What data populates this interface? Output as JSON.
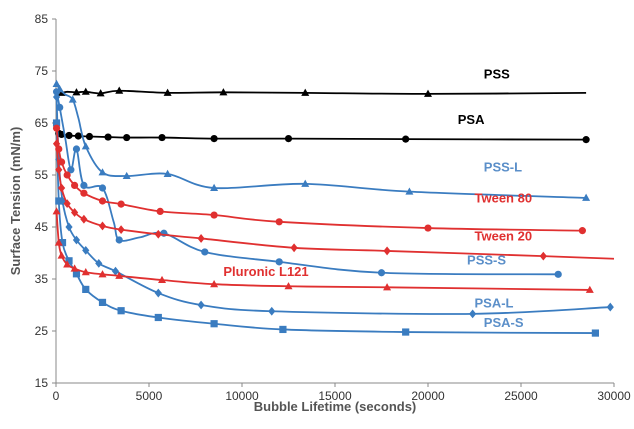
{
  "chart_data": {
    "type": "line",
    "title": "",
    "xlabel": "Bubble Lifetime (seconds)",
    "ylabel": "Surface Tension (mN/m)",
    "xlim": [
      0,
      30000
    ],
    "ylim": [
      15,
      85
    ],
    "xticks": [
      "0",
      "5000",
      "10000",
      "15000",
      "20000",
      "25000",
      "30000"
    ],
    "yticks": [
      "15",
      "25",
      "35",
      "45",
      "55",
      "65",
      "75",
      "85"
    ],
    "grid": false,
    "legend": "none (series labeled directly on the plot)",
    "series": [
      {
        "name": "PSS",
        "color": "#000000",
        "marker": "triangle",
        "points": [
          [
            30,
            71.2
          ],
          [
            150,
            71.0
          ],
          [
            300,
            70.8
          ],
          [
            600,
            71.0
          ],
          [
            1100,
            70.9
          ],
          [
            1600,
            71.0
          ],
          [
            2400,
            70.7
          ],
          [
            3400,
            71.2
          ],
          [
            6000,
            70.8
          ],
          [
            9000,
            70.9
          ],
          [
            13400,
            70.8
          ],
          [
            20000,
            70.6
          ],
          [
            28500,
            70.8
          ]
        ],
        "markers": [
          [
            300,
            70.8
          ],
          [
            1100,
            70.9
          ],
          [
            1600,
            71.0
          ],
          [
            2400,
            70.7
          ],
          [
            3400,
            71.2
          ],
          [
            6000,
            70.8
          ],
          [
            9000,
            70.9
          ],
          [
            13400,
            70.8
          ],
          [
            20000,
            70.6
          ]
        ]
      },
      {
        "name": "PSA",
        "color": "#000000",
        "marker": "circle",
        "points": [
          [
            30,
            63.5
          ],
          [
            150,
            63.0
          ],
          [
            300,
            62.8
          ],
          [
            700,
            62.6
          ],
          [
            1200,
            62.5
          ],
          [
            1800,
            62.4
          ],
          [
            2800,
            62.3
          ],
          [
            3800,
            62.2
          ],
          [
            5700,
            62.2
          ],
          [
            8500,
            62.0
          ],
          [
            12500,
            62.0
          ],
          [
            18800,
            61.9
          ],
          [
            28500,
            61.8
          ]
        ],
        "markers": [
          [
            150,
            63.0
          ],
          [
            300,
            62.8
          ],
          [
            700,
            62.6
          ],
          [
            1200,
            62.5
          ],
          [
            1800,
            62.4
          ],
          [
            2800,
            62.3
          ],
          [
            3800,
            62.2
          ],
          [
            5700,
            62.2
          ],
          [
            8500,
            62.0
          ],
          [
            12500,
            62.0
          ],
          [
            18800,
            61.9
          ],
          [
            28500,
            61.8
          ]
        ]
      },
      {
        "name": "PSS-L",
        "color": "#3a7cc0",
        "marker": "triangle",
        "points": [
          [
            30,
            72.5
          ],
          [
            200,
            71.5
          ],
          [
            500,
            70.5
          ],
          [
            900,
            69.5
          ],
          [
            1200,
            66.0
          ],
          [
            1600,
            60.5
          ],
          [
            2500,
            55.5
          ],
          [
            3800,
            54.8
          ],
          [
            6000,
            55.2
          ],
          [
            8500,
            52.5
          ],
          [
            13400,
            53.3
          ],
          [
            19000,
            51.8
          ],
          [
            28500,
            50.6
          ]
        ],
        "markers": [
          [
            30,
            72.5
          ],
          [
            200,
            71.5
          ],
          [
            900,
            69.5
          ],
          [
            1600,
            60.5
          ],
          [
            2500,
            55.5
          ],
          [
            3800,
            54.8
          ],
          [
            6000,
            55.2
          ],
          [
            8500,
            52.5
          ],
          [
            13400,
            53.3
          ],
          [
            19000,
            51.8
          ],
          [
            28500,
            50.6
          ]
        ]
      },
      {
        "name": "PSS-S",
        "color": "#3a7cc0",
        "marker": "circle",
        "points": [
          [
            30,
            71.0
          ],
          [
            200,
            68.0
          ],
          [
            500,
            62.0
          ],
          [
            800,
            56.0
          ],
          [
            1100,
            60.0
          ],
          [
            1500,
            53.0
          ],
          [
            2500,
            52.5
          ],
          [
            3100,
            46.0
          ],
          [
            3400,
            42.5
          ],
          [
            4500,
            43.0
          ],
          [
            5800,
            43.8
          ],
          [
            8000,
            40.2
          ],
          [
            12000,
            38.3
          ],
          [
            17500,
            36.2
          ],
          [
            27000,
            35.9
          ]
        ],
        "markers": [
          [
            30,
            71.0
          ],
          [
            200,
            68.0
          ],
          [
            800,
            56.0
          ],
          [
            1100,
            60.0
          ],
          [
            1500,
            53.0
          ],
          [
            2500,
            52.5
          ],
          [
            3400,
            42.5
          ],
          [
            5800,
            43.8
          ],
          [
            8000,
            40.2
          ],
          [
            12000,
            38.3
          ],
          [
            17500,
            36.2
          ],
          [
            27000,
            35.9
          ]
        ]
      },
      {
        "name": "PSA-L",
        "color": "#3a7cc0",
        "marker": "diamond",
        "points": [
          [
            30,
            70.0
          ],
          [
            150,
            58.0
          ],
          [
            350,
            50.0
          ],
          [
            700,
            45.0
          ],
          [
            1100,
            42.5
          ],
          [
            1600,
            40.5
          ],
          [
            2300,
            38.0
          ],
          [
            3200,
            36.5
          ],
          [
            5500,
            32.3
          ],
          [
            7800,
            30.0
          ],
          [
            11600,
            28.8
          ],
          [
            22400,
            28.3
          ],
          [
            29800,
            29.6
          ]
        ],
        "markers": [
          [
            30,
            70.0
          ],
          [
            150,
            58.0
          ],
          [
            350,
            50.0
          ],
          [
            700,
            45.0
          ],
          [
            1100,
            42.5
          ],
          [
            1600,
            40.5
          ],
          [
            2300,
            38.0
          ],
          [
            3200,
            36.5
          ],
          [
            5500,
            32.3
          ],
          [
            7800,
            30.0
          ],
          [
            11600,
            28.8
          ],
          [
            22400,
            28.3
          ],
          [
            29800,
            29.6
          ]
        ]
      },
      {
        "name": "PSA-S",
        "color": "#3a7cc0",
        "marker": "square",
        "points": [
          [
            30,
            65.0
          ],
          [
            150,
            50.0
          ],
          [
            350,
            42.0
          ],
          [
            700,
            38.5
          ],
          [
            1100,
            36.0
          ],
          [
            1600,
            33.0
          ],
          [
            2500,
            30.5
          ],
          [
            3500,
            28.9
          ],
          [
            5500,
            27.6
          ],
          [
            8500,
            26.4
          ],
          [
            12200,
            25.3
          ],
          [
            18800,
            24.8
          ],
          [
            29000,
            24.6
          ]
        ],
        "markers": [
          [
            30,
            65.0
          ],
          [
            150,
            50.0
          ],
          [
            350,
            42.0
          ],
          [
            700,
            38.5
          ],
          [
            1100,
            36.0
          ],
          [
            1600,
            33.0
          ],
          [
            2500,
            30.5
          ],
          [
            3500,
            28.9
          ],
          [
            5500,
            27.6
          ],
          [
            8500,
            26.4
          ],
          [
            12200,
            25.3
          ],
          [
            18800,
            24.8
          ],
          [
            29000,
            24.6
          ]
        ]
      },
      {
        "name": "Tween 80",
        "color": "#e03030",
        "marker": "circle",
        "points": [
          [
            30,
            64.0
          ],
          [
            150,
            60.0
          ],
          [
            300,
            57.5
          ],
          [
            600,
            55.0
          ],
          [
            1000,
            53.0
          ],
          [
            1500,
            51.5
          ],
          [
            2500,
            50.0
          ],
          [
            3500,
            49.4
          ],
          [
            5600,
            48.0
          ],
          [
            8500,
            47.3
          ],
          [
            12000,
            46.0
          ],
          [
            20000,
            44.8
          ],
          [
            28300,
            44.3
          ]
        ],
        "markers": [
          [
            30,
            64.0
          ],
          [
            150,
            60.0
          ],
          [
            300,
            57.5
          ],
          [
            600,
            55.0
          ],
          [
            1000,
            53.0
          ],
          [
            1500,
            51.5
          ],
          [
            2500,
            50.0
          ],
          [
            3500,
            49.4
          ],
          [
            5600,
            48.0
          ],
          [
            8500,
            47.3
          ],
          [
            12000,
            46.0
          ],
          [
            20000,
            44.8
          ],
          [
            28300,
            44.3
          ]
        ]
      },
      {
        "name": "Tween 20",
        "color": "#e03030",
        "marker": "diamond",
        "points": [
          [
            30,
            61.0
          ],
          [
            150,
            56.0
          ],
          [
            300,
            52.5
          ],
          [
            600,
            49.5
          ],
          [
            1000,
            47.8
          ],
          [
            1500,
            46.5
          ],
          [
            2500,
            45.2
          ],
          [
            3500,
            44.5
          ],
          [
            5500,
            43.6
          ],
          [
            7800,
            42.8
          ],
          [
            12800,
            41.0
          ],
          [
            17800,
            40.4
          ],
          [
            26200,
            39.4
          ],
          [
            30000,
            38.9
          ]
        ],
        "markers": [
          [
            30,
            61.0
          ],
          [
            150,
            56.0
          ],
          [
            300,
            52.5
          ],
          [
            600,
            49.5
          ],
          [
            1000,
            47.8
          ],
          [
            1500,
            46.5
          ],
          [
            2500,
            45.2
          ],
          [
            3500,
            44.5
          ],
          [
            5500,
            43.6
          ],
          [
            7800,
            42.8
          ],
          [
            12800,
            41.0
          ],
          [
            17800,
            40.4
          ],
          [
            26200,
            39.4
          ]
        ]
      },
      {
        "name": "Pluronic L121",
        "color": "#e03030",
        "marker": "triangle",
        "points": [
          [
            30,
            48.0
          ],
          [
            150,
            42.0
          ],
          [
            300,
            39.5
          ],
          [
            600,
            37.8
          ],
          [
            1000,
            37.0
          ],
          [
            1600,
            36.3
          ],
          [
            2500,
            35.9
          ],
          [
            3400,
            35.6
          ],
          [
            5700,
            34.8
          ],
          [
            8500,
            34.0
          ],
          [
            12500,
            33.6
          ],
          [
            17800,
            33.4
          ],
          [
            28700,
            32.9
          ]
        ],
        "markers": [
          [
            30,
            48.0
          ],
          [
            150,
            42.0
          ],
          [
            300,
            39.5
          ],
          [
            600,
            37.8
          ],
          [
            1000,
            37.0
          ],
          [
            1600,
            36.3
          ],
          [
            2500,
            35.9
          ],
          [
            3400,
            35.6
          ],
          [
            5700,
            34.8
          ],
          [
            8500,
            34.0
          ],
          [
            12500,
            33.6
          ],
          [
            17800,
            33.4
          ],
          [
            28700,
            32.9
          ]
        ]
      }
    ],
    "annotations": [
      {
        "text": "PSS",
        "x": 23000,
        "y": 73.6,
        "color": "#000000"
      },
      {
        "text": "PSA",
        "x": 21600,
        "y": 64.8,
        "color": "#000000"
      },
      {
        "text": "PSS-L",
        "x": 23000,
        "y": 55.7,
        "color": "#5b8fc9"
      },
      {
        "text": "Tween 80",
        "x": 22500,
        "y": 49.7,
        "color": "#e03030"
      },
      {
        "text": "Tween 20",
        "x": 22500,
        "y": 42.4,
        "color": "#e03030"
      },
      {
        "text": "PSS-S",
        "x": 22100,
        "y": 37.8,
        "color": "#5b8fc9"
      },
      {
        "text": "Pluronic L121",
        "x": 9000,
        "y": 35.6,
        "color": "#e03030"
      },
      {
        "text": "PSA-L",
        "x": 22500,
        "y": 29.5,
        "color": "#5b8fc9"
      },
      {
        "text": "PSA-S",
        "x": 23000,
        "y": 25.8,
        "color": "#5b8fc9"
      }
    ]
  }
}
